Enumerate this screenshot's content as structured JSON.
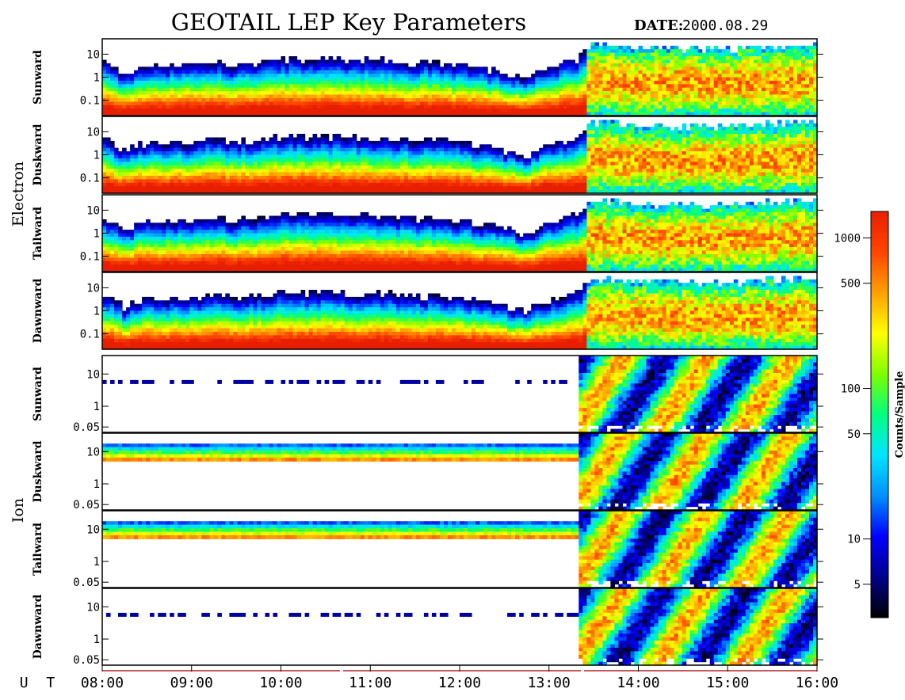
{
  "title": "GEOTAIL LEP Key Parameters",
  "date_label": "DATE:",
  "date_value": "2000.08.29",
  "colors": {
    "colormap": [
      "#000000",
      "#00008b",
      "#0000ff",
      "#0090ff",
      "#00e5ff",
      "#00ff80",
      "#7fff00",
      "#ffff00",
      "#ffa000",
      "#ff4500",
      "#e81e00"
    ]
  },
  "chart_data": {
    "type": "heatmap",
    "x_axis": {
      "label": "U T",
      "ticks": [
        "08:00",
        "09:00",
        "10:00",
        "11:00",
        "12:00",
        "13:00",
        "14:00",
        "15:00",
        "16:00"
      ],
      "range": [
        "08:00",
        "16:00"
      ]
    },
    "groups": [
      {
        "name": "Electron",
        "panels": [
          {
            "name": "Sunward",
            "y_ticks": [
              "10",
              "1",
              "0.1"
            ],
            "y_scale": "log"
          },
          {
            "name": "Duskward",
            "y_ticks": [
              "10",
              "1",
              "0.1"
            ],
            "y_scale": "log"
          },
          {
            "name": "Tailward",
            "y_ticks": [
              "10",
              "1",
              "0.1"
            ],
            "y_scale": "log"
          },
          {
            "name": "Dawnward",
            "y_ticks": [
              "10",
              "1",
              "0.1"
            ],
            "y_scale": "log"
          }
        ]
      },
      {
        "name": "Ion",
        "panels": [
          {
            "name": "Sunward",
            "y_ticks": [
              "10",
              "1",
              "0.05"
            ],
            "y_scale": "log"
          },
          {
            "name": "Duskward",
            "y_ticks": [
              "10",
              "1",
              "0.05"
            ],
            "y_scale": "log"
          },
          {
            "name": "Tailward",
            "y_ticks": [
              "10",
              "1",
              "0.05"
            ],
            "y_scale": "log"
          },
          {
            "name": "Dawnward",
            "y_ticks": [
              "10",
              "1",
              "0.05"
            ],
            "y_scale": "log"
          }
        ]
      }
    ],
    "colorbar": {
      "label": "Counts/Sample",
      "scale": "log",
      "range": [
        3,
        1500
      ],
      "ticks": [
        {
          "value": 1000,
          "label": "1000"
        },
        {
          "value": 500,
          "label": "500"
        },
        {
          "value": 100,
          "label": "100"
        },
        {
          "value": 50,
          "label": "50"
        },
        {
          "value": 10,
          "label": "10"
        },
        {
          "value": 5,
          "label": "5"
        }
      ]
    },
    "electron_profile": {
      "x": [
        "08:00",
        "08:15",
        "08:30",
        "09:00",
        "09:15",
        "09:30",
        "10:00",
        "11:00",
        "12:00",
        "12:45",
        "13:00",
        "13:20",
        "13:30",
        "14:00",
        "15:00",
        "15:30",
        "16:00"
      ],
      "upper_energy": [
        4.0,
        1.5,
        3.0,
        3.0,
        4.0,
        3.0,
        5.0,
        4.5,
        3.0,
        1.0,
        2.5,
        5.0,
        15.0,
        12.0,
        10.0,
        14.0,
        15.0
      ]
    },
    "ion_profile": {
      "x": [
        "08:00",
        "10:30",
        "12:00",
        "13:15",
        "13:20",
        "13:40",
        "14:00",
        "15:00",
        "16:00"
      ],
      "flux_level": [
        "band",
        "band",
        "band",
        "band",
        "broad",
        "broad",
        "broad",
        "broad",
        "broad"
      ]
    }
  }
}
